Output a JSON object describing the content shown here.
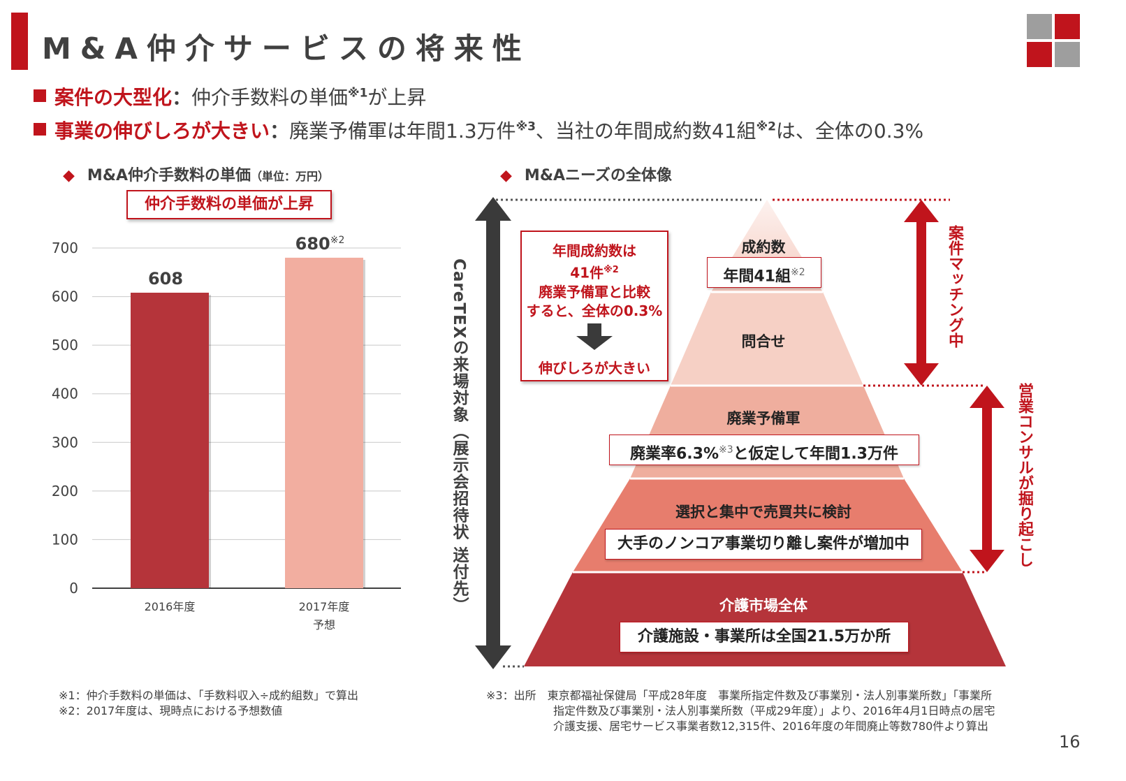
{
  "title": "M&A仲介サービスの将来性",
  "page_number": "16",
  "colors": {
    "accent": "#c0141c",
    "bar_2016": "#b5343a",
    "bar_2017": "#f2aea0",
    "gray": "#9e9e9e"
  },
  "bullets": [
    {
      "emphasis": "案件の大型化",
      "colon": "：",
      "text_a": "仲介手数料の単価",
      "sup_a": "※1",
      "text_b": "が上昇",
      "sup_b": "",
      "text_c": ""
    },
    {
      "emphasis": "事業の伸びしろが大きい",
      "colon": "：",
      "text_a": "廃業予備軍は年間1.3万件",
      "sup_a": "※3",
      "text_b": "、当社の年間成約数41組",
      "sup_b": "※2",
      "text_c": "は、全体の0.3%"
    }
  ],
  "left_section": {
    "marker": "◆",
    "title": "M&A仲介手数料の単価",
    "unit": "（単位：万円）",
    "callout": "仲介手数料の単価が上昇"
  },
  "chart_data": {
    "type": "bar",
    "title": "M&A仲介手数料の単価",
    "unit": "（単位：万円）",
    "categories": [
      "2016年度",
      "2017年度"
    ],
    "category_sublabels": [
      "",
      "予想"
    ],
    "values": [
      608,
      680
    ],
    "value_labels": [
      "608",
      "680"
    ],
    "value_label_sups": [
      "",
      "※2"
    ],
    "ylim": [
      0,
      700
    ],
    "yticks": [
      0,
      100,
      200,
      300,
      400,
      500,
      600,
      700
    ],
    "ytick_labels": [
      "0",
      "100",
      "200",
      "300",
      "400",
      "500",
      "600",
      "700"
    ],
    "grid": true
  },
  "right_section": {
    "marker": "◆",
    "title": "M&Aニーズの全体像",
    "left_arrow_label": "CareTEXの来場対象（展示会招待状 送付先）",
    "callout": {
      "line1": "年間成約数は",
      "line2": "41件",
      "line2_sup": "※2",
      "line3": "廃業予備軍と比較",
      "line4": "すると、全体の0.3%",
      "result": "伸びしろが大きい"
    },
    "right_arrow_top_label": "案件マッチング中",
    "right_arrow_bottom_label": "営業コンサルが掘り起こし",
    "tiers": [
      {
        "label": "成約数",
        "box": "年間41組",
        "box_sup": "※2",
        "box_suffix": ""
      },
      {
        "label": "問合せ"
      },
      {
        "label": "廃業予備軍",
        "box": "廃業率6.3%",
        "box_sup": "※3",
        "box_suffix": "と仮定して年間1.3万件"
      },
      {
        "label": "選択と集中で売買共に検討",
        "box": "大手のノンコア事業切り離し案件が増加中",
        "box_sup": "",
        "box_suffix": ""
      },
      {
        "label": "介護市場全体",
        "box": "介護施設・事業所は全国21.5万か所",
        "box_sup": "",
        "box_suffix": ""
      }
    ]
  },
  "notes_left": [
    "※1：仲介手数料の単価は、「手数料収入÷成約組数」で算出",
    "※2：2017年度は、現時点における予想数値"
  ],
  "notes_right": [
    "※3：出所　東京都福祉保健局「平成28年度　事業所指定件数及び事業別・法人別事業所数」「事業所",
    "指定件数及び事業別・法人別事業所数（平成29年度）」より、2016年4月1日時点の居宅",
    "介護支援、居宅サービス事業者数12,315件、2016年度の年間廃止等数780件より算出"
  ]
}
